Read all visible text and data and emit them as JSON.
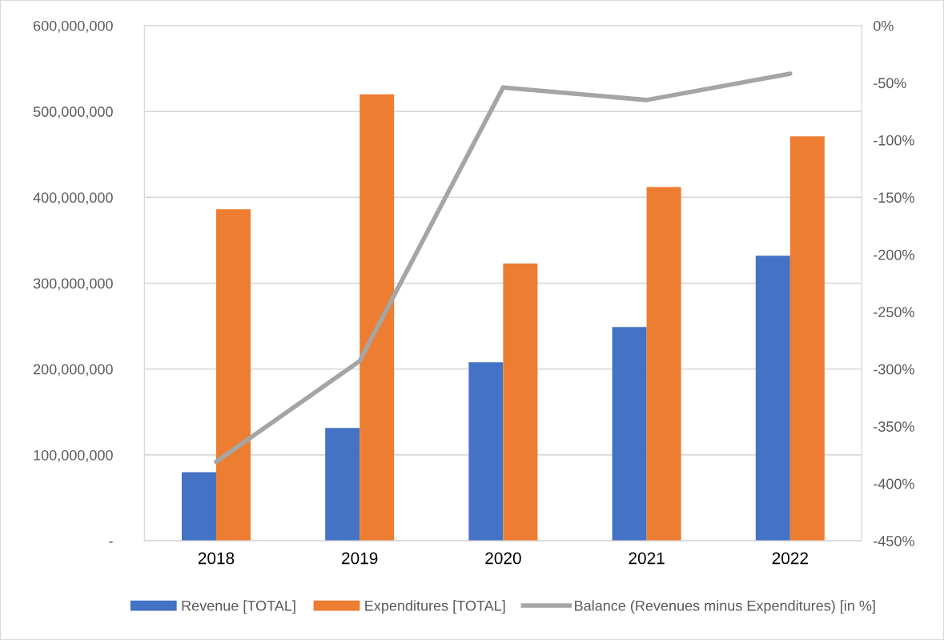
{
  "chart_data": {
    "type": "bar",
    "categories": [
      "2018",
      "2019",
      "2020",
      "2021",
      "2022"
    ],
    "series": [
      {
        "name": "Revenue [TOTAL]",
        "color": "#4472c4",
        "values": [
          80000000,
          131500000,
          208000000,
          249000000,
          332000000
        ]
      },
      {
        "name": "Expenditures [TOTAL]",
        "color": "#ed7d31",
        "values": [
          386000000,
          520000000,
          323000000,
          412000000,
          471000000
        ]
      },
      {
        "name": "Balance (Revenues minus Expenditures) [in %]",
        "color": "#a5a5a5",
        "type": "line",
        "axis": "y2",
        "marker": "none",
        "line_style": "solid",
        "values": [
          -381,
          -293,
          -54,
          -65,
          -42
        ]
      }
    ],
    "ylim": [
      0,
      600000000
    ],
    "yticks": [
      {
        "value": 0,
        "label": "-"
      },
      {
        "value": 100000000,
        "label": "100,000,000"
      },
      {
        "value": 200000000,
        "label": "200,000,000"
      },
      {
        "value": 300000000,
        "label": "300,000,000"
      },
      {
        "value": 400000000,
        "label": "400,000,000"
      },
      {
        "value": 500000000,
        "label": "500,000,000"
      },
      {
        "value": 600000000,
        "label": "600,000,000"
      }
    ],
    "y2lim": [
      -450,
      0
    ],
    "y2ticks": [
      {
        "value": -450,
        "label": "-450%"
      },
      {
        "value": -400,
        "label": "-400%"
      },
      {
        "value": -350,
        "label": "-350%"
      },
      {
        "value": -300,
        "label": "-300%"
      },
      {
        "value": -250,
        "label": "-250%"
      },
      {
        "value": -200,
        "label": "-200%"
      },
      {
        "value": -150,
        "label": "-150%"
      },
      {
        "value": -100,
        "label": "-100%"
      },
      {
        "value": -50,
        "label": "-50%"
      },
      {
        "value": 0,
        "label": "0%"
      }
    ],
    "grid": "y",
    "legend": "bottom"
  }
}
